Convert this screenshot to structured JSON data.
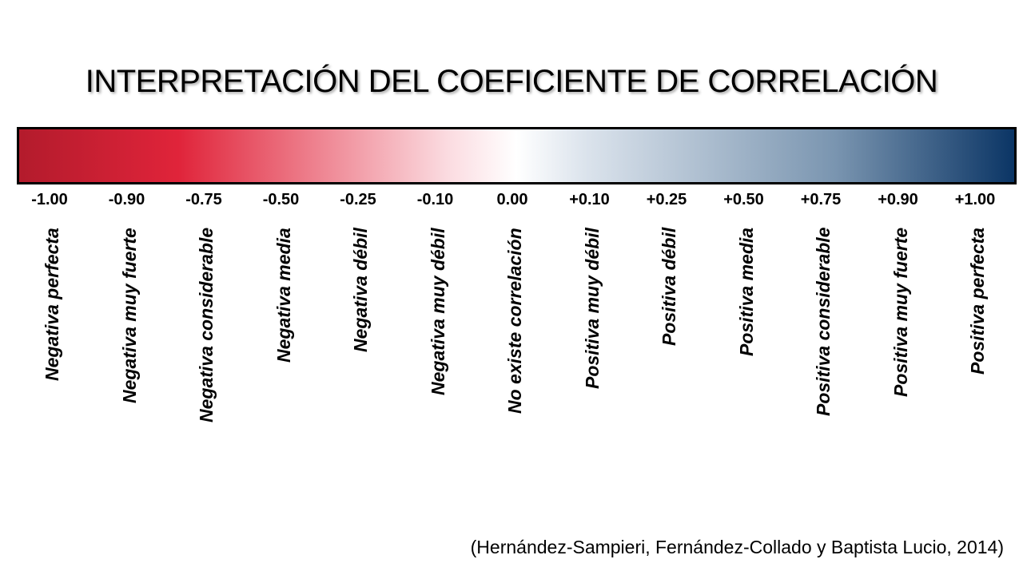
{
  "title": "INTERPRETACIÓN DEL COEFICIENTE DE CORRELACIÓN",
  "scale": {
    "gradient_colors": [
      "#b31b2c",
      "#e0243a",
      "#fbdbe0",
      "#ffffff",
      "#dbe3ec",
      "#7a95b0",
      "#0b3565"
    ],
    "points": [
      {
        "value": "-1.00",
        "label": "Negativa perfecta"
      },
      {
        "value": "-0.90",
        "label": "Negativa muy fuerte"
      },
      {
        "value": "-0.75",
        "label": "Negativa considerable"
      },
      {
        "value": "-0.50",
        "label": "Negativa media"
      },
      {
        "value": "-0.25",
        "label": "Negativa débil"
      },
      {
        "value": "-0.10",
        "label": "Negativa muy débil"
      },
      {
        "value": "0.00",
        "label": "No existe correlación"
      },
      {
        "value": "+0.10",
        "label": "Positiva muy débil"
      },
      {
        "value": "+0.25",
        "label": "Positiva débil"
      },
      {
        "value": "+0.50",
        "label": "Positiva media"
      },
      {
        "value": "+0.75",
        "label": "Positiva considerable"
      },
      {
        "value": "+0.90",
        "label": "Positiva muy fuerte"
      },
      {
        "value": "+1.00",
        "label": "Positiva perfecta"
      }
    ]
  },
  "citation": "(Hernández-Sampieri, Fernández-Collado y Baptista Lucio, 2014)"
}
